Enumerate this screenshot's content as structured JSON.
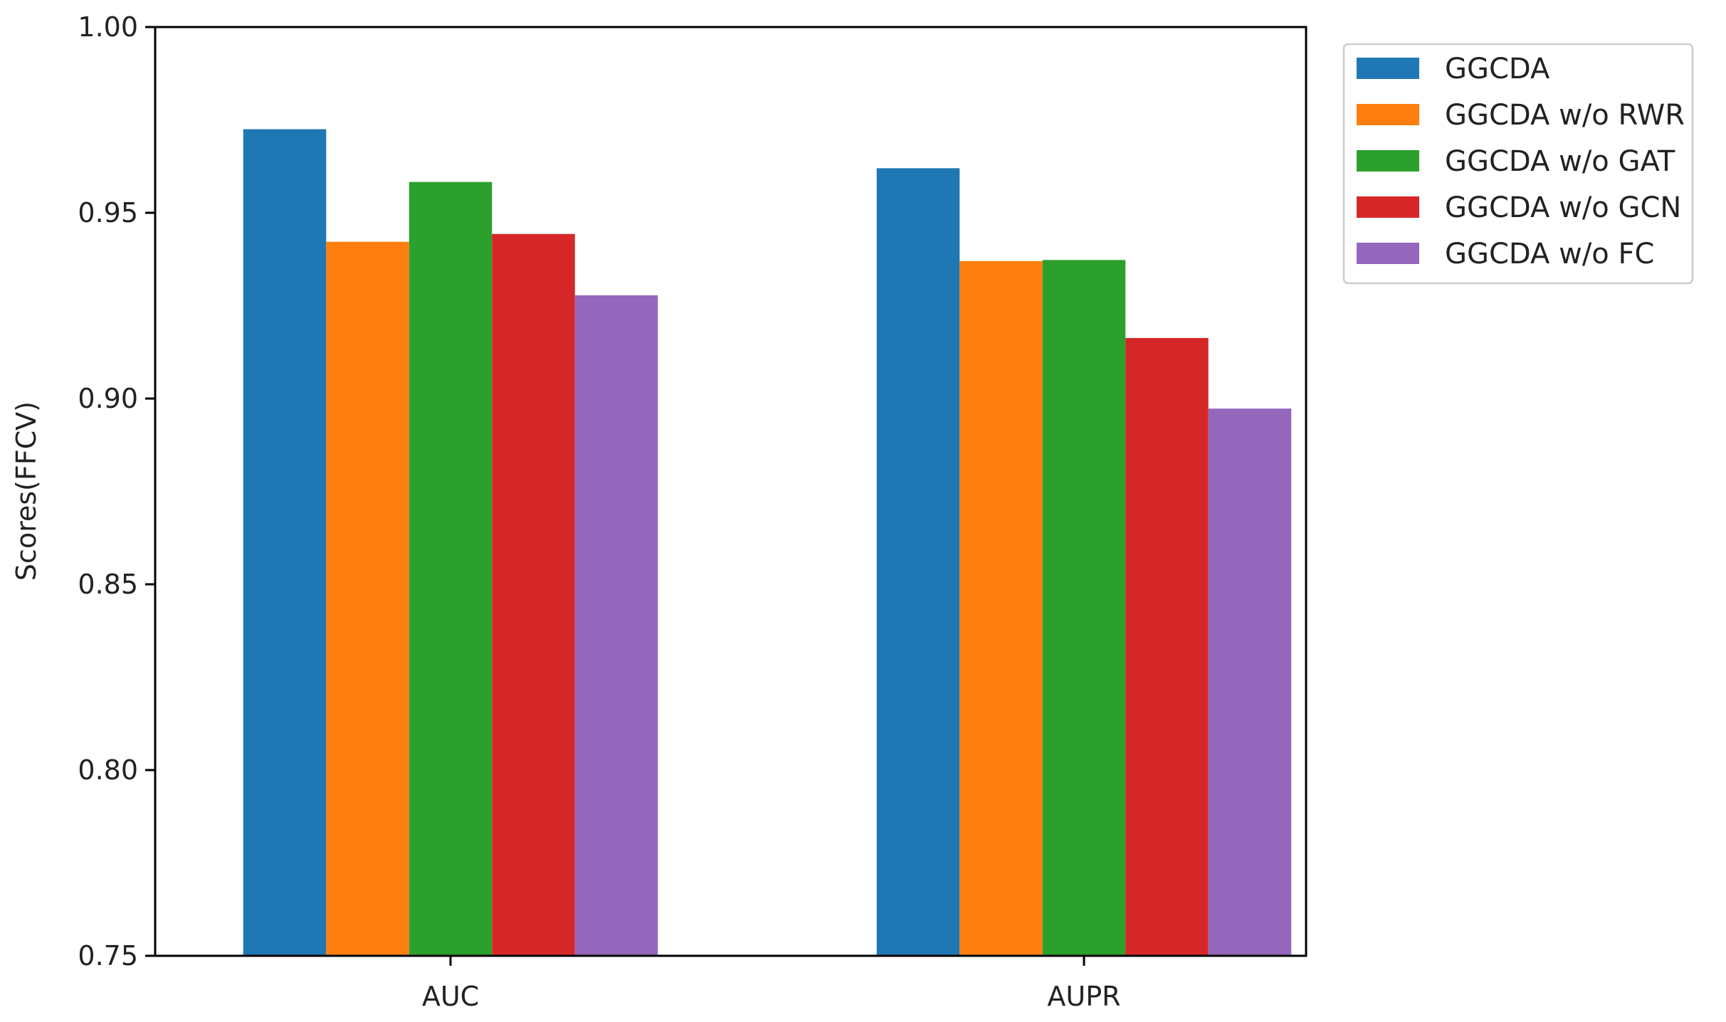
{
  "chart_data": {
    "type": "bar",
    "categories": [
      "AUC",
      "AUPR"
    ],
    "series": [
      {
        "name": "GGCDA",
        "color": "#1f77b4",
        "values": [
          0.9725,
          0.962
        ]
      },
      {
        "name": "GGCDA w/o RWR",
        "color": "#ff7f0e",
        "values": [
          0.9422,
          0.937
        ]
      },
      {
        "name": "GGCDA w/o GAT",
        "color": "#2ca02c",
        "values": [
          0.9583,
          0.9373
        ]
      },
      {
        "name": "GGCDA w/o GCN",
        "color": "#d62728",
        "values": [
          0.9443,
          0.9163
        ]
      },
      {
        "name": "GGCDA w/o FC",
        "color": "#9467bd",
        "values": [
          0.9278,
          0.8973
        ]
      }
    ],
    "ylabel": "Scores(FFCV)",
    "xlabel": "",
    "title": "",
    "ylim": [
      0.75,
      1.0
    ],
    "yticks": [
      "0.75",
      "0.80",
      "0.85",
      "0.90",
      "0.95",
      "1.00"
    ],
    "grid": false,
    "legend_position": "outside-top-right"
  }
}
